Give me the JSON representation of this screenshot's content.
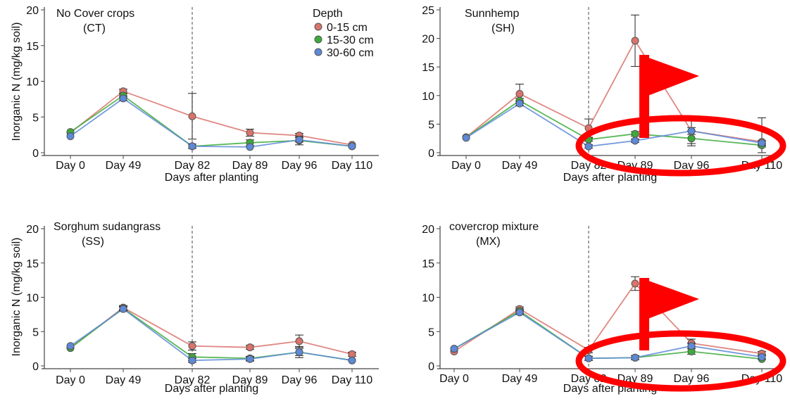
{
  "shared": {
    "xlabel": "Days after planting",
    "ylabel": "Inorganic N (mg/kg soil)",
    "categories": [
      "Day 0",
      "Day 49",
      "Day 82",
      "Day 89",
      "Day 96",
      "Day 110"
    ],
    "legend_title": "Depth",
    "series_names": [
      "0-15 cm",
      "15-30 cm",
      "30-60 cm"
    ],
    "series_colors": [
      "#d9736c",
      "#3cab3a",
      "#5e89d8"
    ]
  },
  "chart_data": [
    {
      "type": "line",
      "title_line1": "No Cover crops",
      "title_line2": "(CT)",
      "categories": [
        "Day 0",
        "Day 49",
        "Day 82",
        "Day 89",
        "Day 96",
        "Day 110"
      ],
      "xlabel": "Days after planting",
      "ylabel": "Inorganic N (mg/kg soil)",
      "ylim": [
        0,
        20
      ],
      "yticks": [
        0,
        5,
        10,
        15,
        20
      ],
      "vline_at": "Day 82",
      "legend": "top-right",
      "series": [
        {
          "name": "0-15 cm",
          "color": "#d9736c",
          "values": [
            2.8,
            8.6,
            5.1,
            2.8,
            2.4,
            1.1
          ],
          "err": [
            0.2,
            0.3,
            3.2,
            0.5,
            0.3,
            0.2
          ]
        },
        {
          "name": "15-30 cm",
          "color": "#3cab3a",
          "values": [
            2.9,
            8.0,
            0.9,
            1.4,
            1.7,
            0.9
          ],
          "err": [
            0.2,
            0.3,
            0.3,
            0.4,
            0.6,
            0.2
          ]
        },
        {
          "name": "30-60 cm",
          "color": "#5e89d8",
          "values": [
            2.3,
            7.6,
            0.9,
            0.8,
            1.8,
            0.9
          ],
          "err": [
            0.2,
            0.3,
            0.3,
            0.2,
            0.3,
            0.2
          ]
        }
      ]
    },
    {
      "type": "line",
      "title_line1": "Sunnhemp",
      "title_line2": "(SH)",
      "categories": [
        "Day 0",
        "Day 49",
        "Day 82",
        "Day 89",
        "Day 96",
        "Day 110"
      ],
      "xlabel": "Days after planting",
      "ylabel": "",
      "ylim": [
        0,
        25
      ],
      "yticks": [
        0,
        5,
        10,
        15,
        20,
        25
      ],
      "vline_at": "Day 82",
      "series": [
        {
          "name": "0-15 cm",
          "color": "#d9736c",
          "values": [
            2.7,
            10.3,
            4.3,
            19.6,
            3.8,
            1.9
          ],
          "err": [
            0.2,
            1.7,
            1.6,
            4.5,
            2.2,
            4.2
          ]
        },
        {
          "name": "15-30 cm",
          "color": "#3cab3a",
          "values": [
            2.7,
            9.1,
            2.3,
            3.3,
            2.5,
            1.3
          ],
          "err": [
            0.2,
            0.4,
            0.3,
            0.4,
            1.3,
            0.3
          ]
        },
        {
          "name": "30-60 cm",
          "color": "#5e89d8",
          "values": [
            2.6,
            8.6,
            1.1,
            2.1,
            3.8,
            1.7
          ],
          "err": [
            0.2,
            0.4,
            0.3,
            0.3,
            0.6,
            0.4
          ]
        }
      ]
    },
    {
      "type": "line",
      "title_line1": "Sorghum sudangrass",
      "title_line2": "(SS)",
      "categories": [
        "Day 0",
        "Day 49",
        "Day 82",
        "Day 89",
        "Day 96",
        "Day 110"
      ],
      "xlabel": "Days after planting",
      "ylabel": "Inorganic N (mg/kg soil)",
      "ylim": [
        0,
        20
      ],
      "yticks": [
        0,
        5,
        10,
        15,
        20
      ],
      "vline_at": "Day 82",
      "series": [
        {
          "name": "0-15 cm",
          "color": "#d9736c",
          "values": [
            2.6,
            8.5,
            2.9,
            2.7,
            3.6,
            1.7
          ],
          "err": [
            0.2,
            0.3,
            0.6,
            0.3,
            0.9,
            0.3
          ]
        },
        {
          "name": "15-30 cm",
          "color": "#3cab3a",
          "values": [
            2.6,
            8.4,
            1.3,
            1.1,
            2.0,
            0.8
          ],
          "err": [
            0.2,
            0.3,
            0.5,
            0.3,
            0.8,
            0.2
          ]
        },
        {
          "name": "30-60 cm",
          "color": "#5e89d8",
          "values": [
            2.9,
            8.3,
            0.8,
            1.0,
            2.0,
            0.8
          ],
          "err": [
            0.2,
            0.3,
            0.3,
            0.3,
            0.5,
            0.2
          ]
        }
      ]
    },
    {
      "type": "line",
      "title_line1": "covercrop mixture",
      "title_line2": "(MX)",
      "categories": [
        "Day 0",
        "Day 49",
        "Day 82",
        "Day 89",
        "Day 96",
        "Day 110"
      ],
      "xlabel": "Days after planting",
      "ylabel": "",
      "ylim": [
        0,
        20
      ],
      "yticks": [
        0,
        5,
        10,
        15,
        20
      ],
      "vline_at": "Day 82",
      "series": [
        {
          "name": "0-15 cm",
          "color": "#d9736c",
          "values": [
            2.1,
            8.3,
            2.3,
            12.0,
            3.3,
            1.8
          ],
          "err": [
            0.2,
            0.3,
            0.4,
            1.0,
            0.6,
            0.3
          ]
        },
        {
          "name": "15-30 cm",
          "color": "#3cab3a",
          "values": [
            2.5,
            8.0,
            1.1,
            1.2,
            2.1,
            1.0
          ],
          "err": [
            0.2,
            0.3,
            0.3,
            0.3,
            0.4,
            0.2
          ]
        },
        {
          "name": "30-60 cm",
          "color": "#5e89d8",
          "values": [
            2.5,
            7.8,
            1.1,
            1.2,
            2.9,
            1.3
          ],
          "err": [
            0.2,
            0.3,
            0.3,
            0.3,
            0.4,
            0.3
          ]
        }
      ]
    }
  ],
  "annotations": {
    "color": "#ff0000",
    "marks": [
      "flag-icon",
      "ellipse-highlight"
    ]
  }
}
